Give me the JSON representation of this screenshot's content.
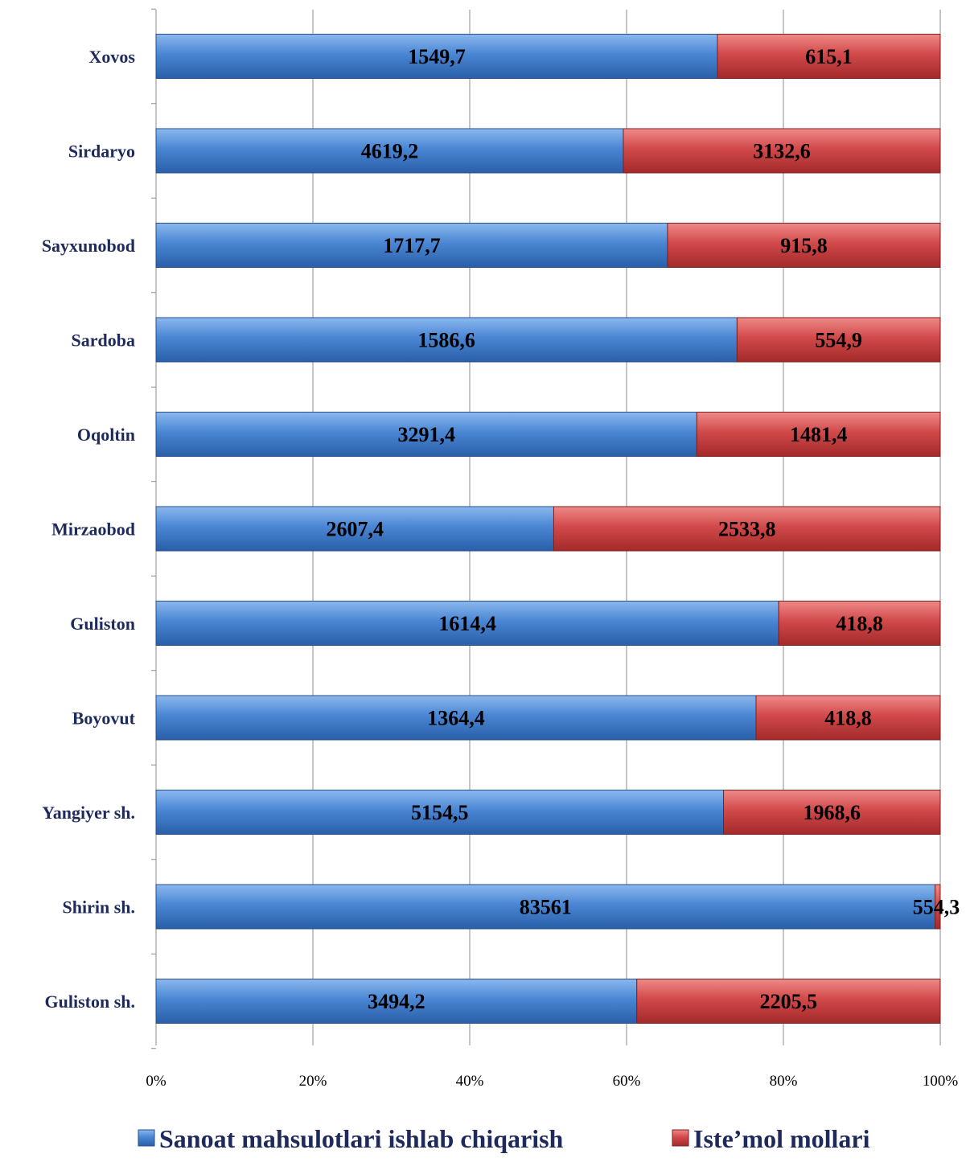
{
  "chart_data": {
    "type": "bar",
    "orientation": "horizontal",
    "stacking": "percent",
    "categories": [
      "Xovos",
      "Sirdaryo",
      "Sayxunobod",
      "Sardoba",
      "Oqoltin",
      "Mirzaobod",
      "Guliston",
      "Boyovut",
      "Yangiyer sh.",
      "Shirin sh.",
      "Guliston sh."
    ],
    "series": [
      {
        "name": "Sanoat mahsulotlari ishlab chiqarish",
        "color": "#3a78c9",
        "values": [
          1549.7,
          4619.2,
          1717.7,
          1586.6,
          3291.4,
          2607.4,
          1614.4,
          1364.4,
          5154.5,
          83561,
          3494.2
        ],
        "labels": [
          "1549,7",
          "4619,2",
          "1717,7",
          "1586,6",
          "3291,4",
          "2607,4",
          "1614,4",
          "1364,4",
          "5154,5",
          "83561",
          "3494,2"
        ]
      },
      {
        "name": "Iste’mol mollari",
        "color": "#c93b3b",
        "values": [
          615.1,
          3132.6,
          915.8,
          554.9,
          1481.4,
          2533.8,
          418.8,
          418.8,
          1968.6,
          554.3,
          2205.5
        ],
        "labels": [
          "615,1",
          "3132,6",
          "915,8",
          "554,9",
          "1481,4",
          "2533,8",
          "418,8",
          "418,8",
          "1968,6",
          "554,3",
          "2205,5"
        ]
      }
    ],
    "x_ticks": [
      "0%",
      "20%",
      "40%",
      "60%",
      "80%",
      "100%"
    ],
    "xlim": [
      0,
      100
    ],
    "grid": "vertical",
    "legend_position": "bottom",
    "title": "",
    "xlabel": "",
    "ylabel": ""
  }
}
